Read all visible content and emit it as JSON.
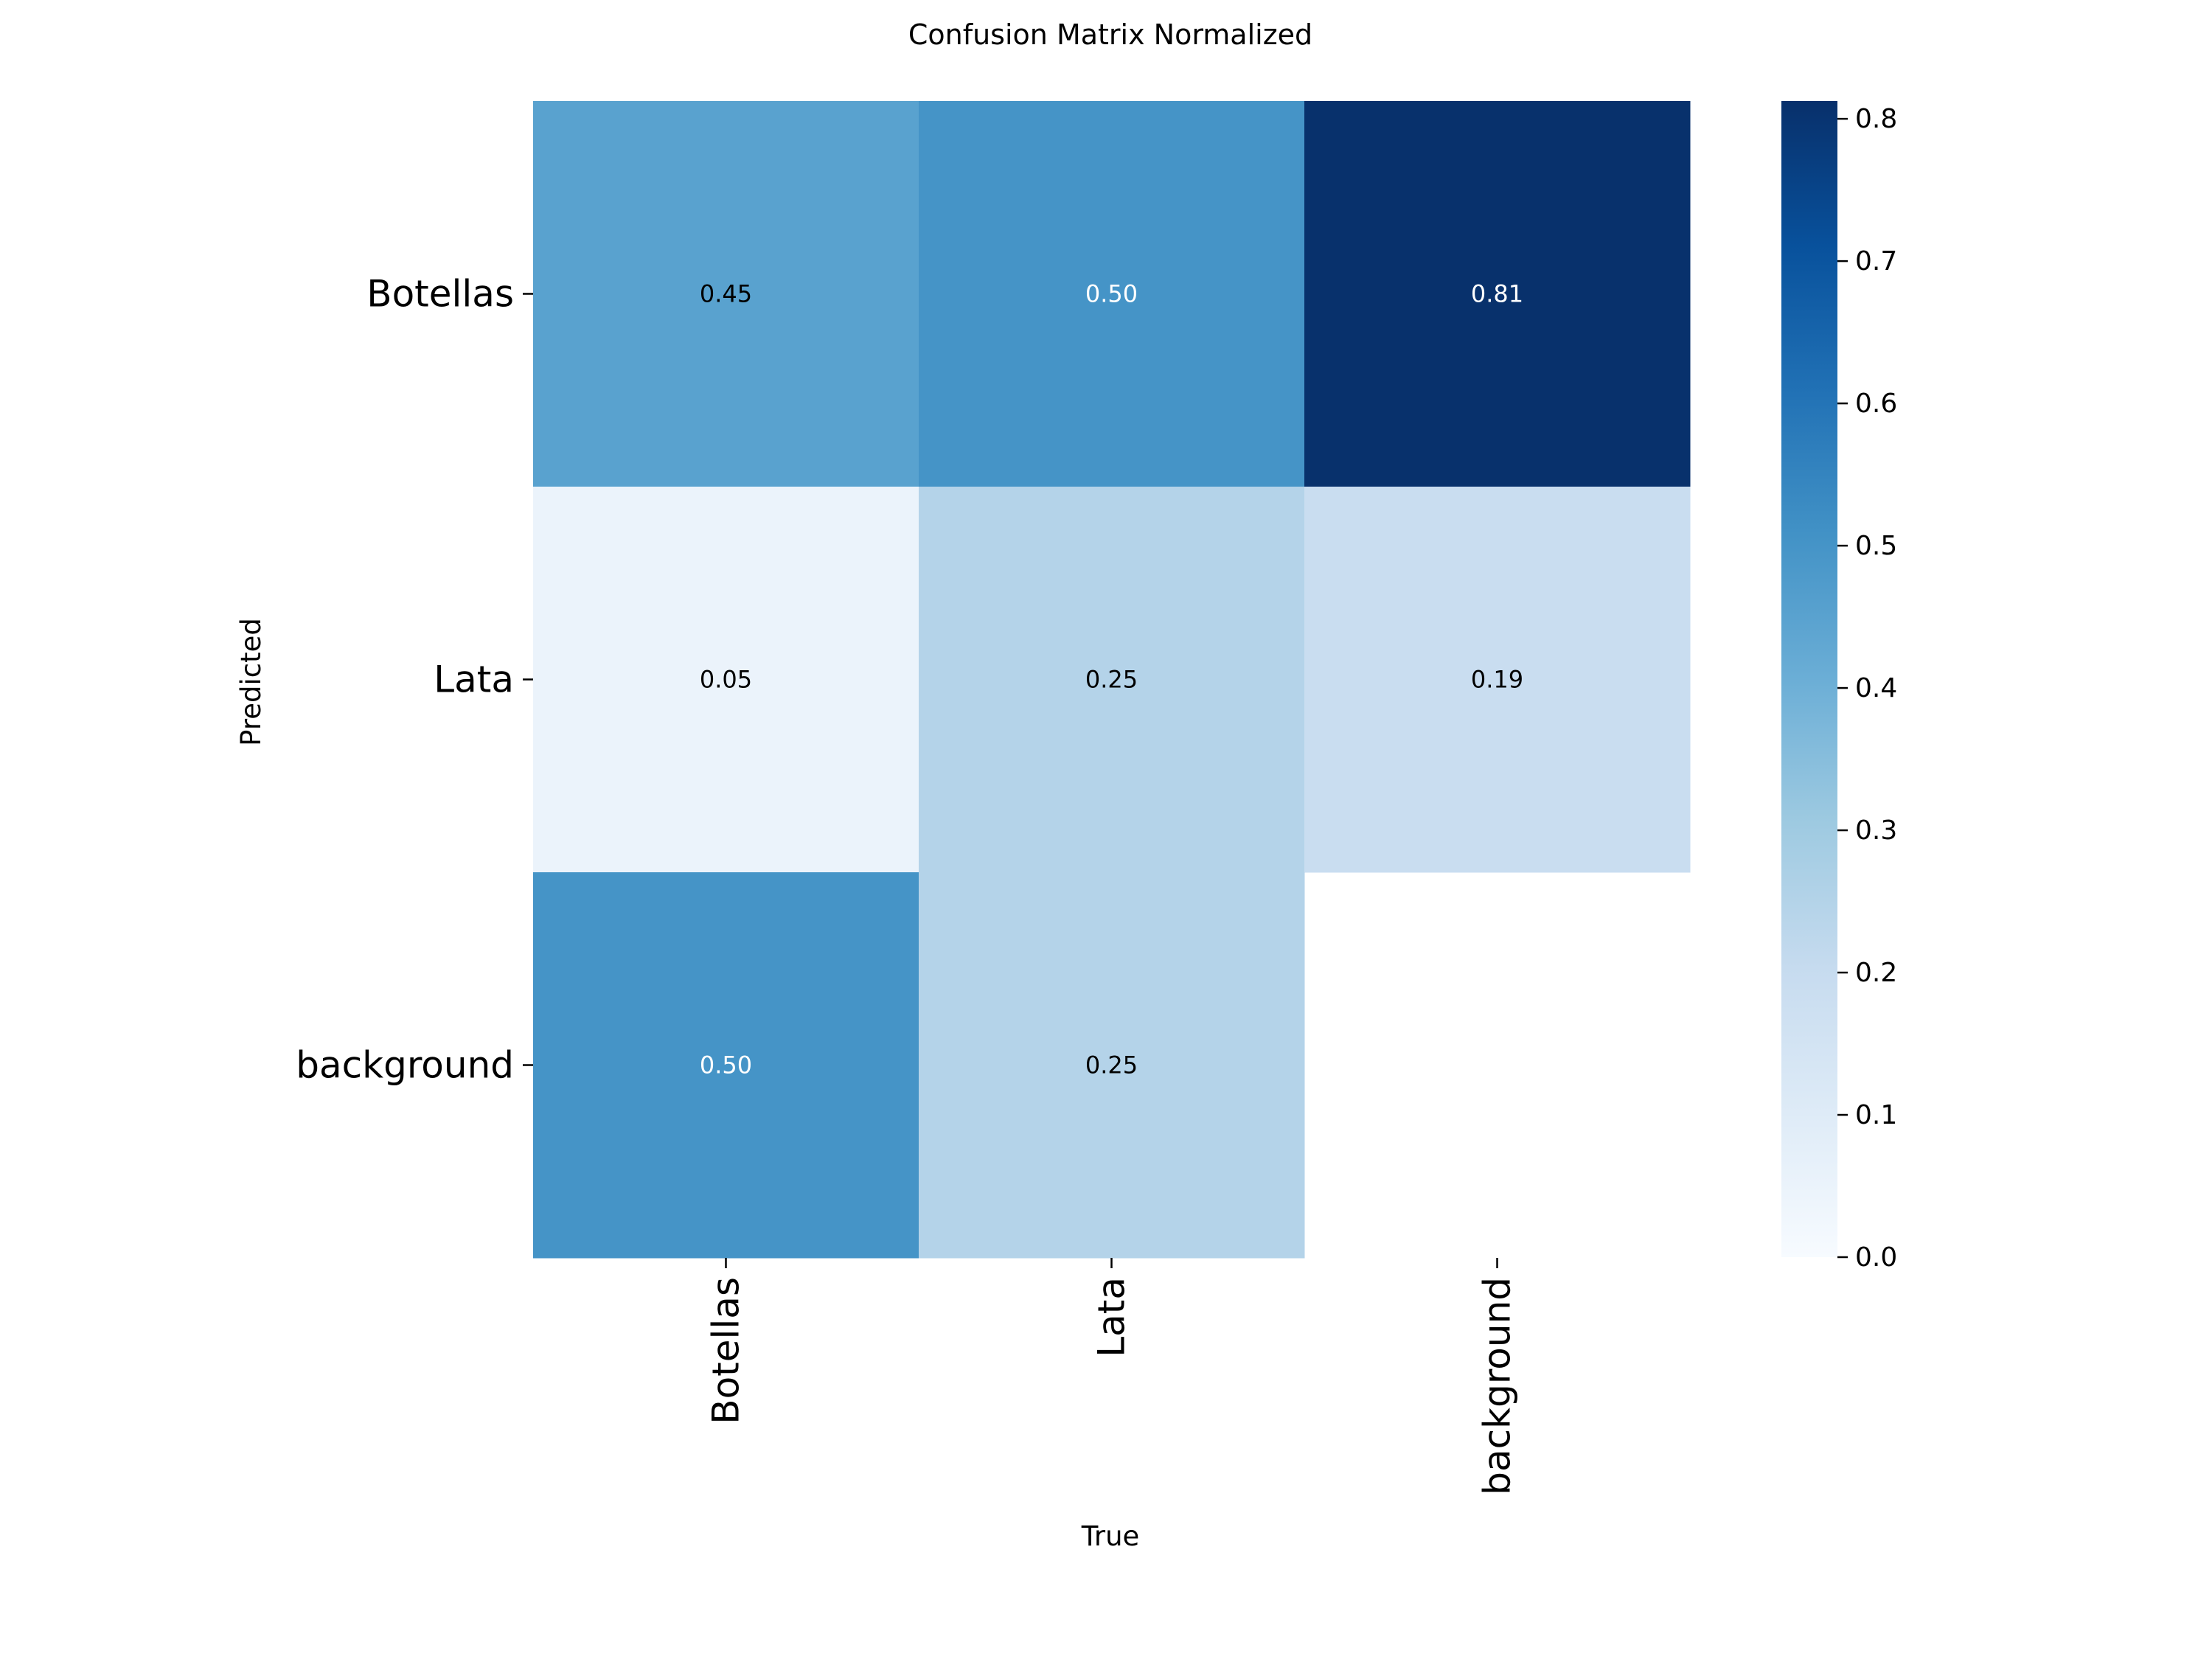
{
  "chart_data": {
    "type": "heatmap",
    "title": "Confusion Matrix Normalized",
    "xlabel": "True",
    "ylabel": "Predicted",
    "x_categories": [
      "Botellas",
      "Lata",
      "background"
    ],
    "y_categories": [
      "Botellas",
      "Lata",
      "background"
    ],
    "values": [
      [
        0.45,
        0.5,
        0.81
      ],
      [
        0.05,
        0.25,
        0.19
      ],
      [
        0.5,
        0.25,
        null
      ]
    ],
    "value_labels": [
      [
        "0.45",
        "0.50",
        "0.81"
      ],
      [
        "0.05",
        "0.25",
        "0.19"
      ],
      [
        "0.50",
        "0.25",
        ""
      ]
    ],
    "colorbar": {
      "min": 0.0,
      "max": 0.8125,
      "ticks": [
        "0.0",
        "0.1",
        "0.2",
        "0.3",
        "0.4",
        "0.5",
        "0.6",
        "0.7",
        "0.8"
      ],
      "colormap": "Blues"
    },
    "grid": false,
    "legend": "colorbar-right"
  }
}
